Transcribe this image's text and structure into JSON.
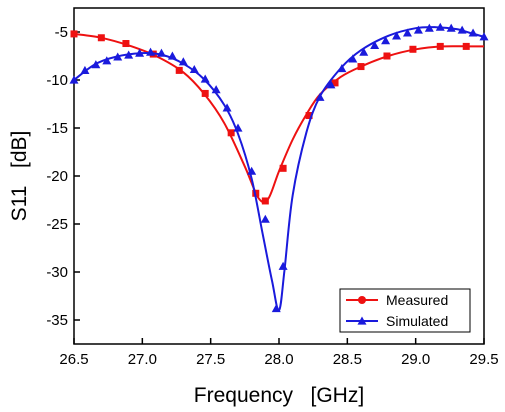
{
  "chart_data": {
    "type": "line",
    "xlabel": "Frequency   [GHz]",
    "ylabel": "S11   [dB]",
    "xlim": [
      26.5,
      29.5
    ],
    "ylim": [
      -37.5,
      -2.5
    ],
    "xticks": [
      "26.5",
      "27.0",
      "27.5",
      "28.0",
      "28.5",
      "29.0",
      "29.5"
    ],
    "yticks": [
      "-5",
      "-10",
      "-15",
      "-20",
      "-25",
      "-30",
      "-35"
    ],
    "grid": false,
    "legend_position": "bottom-right",
    "series": [
      {
        "name": "Measured",
        "color": "#ee1111",
        "marker": "square",
        "x": [
          26.5,
          26.7,
          26.9,
          27.1,
          27.3,
          27.45,
          27.6,
          27.75,
          27.85,
          27.92,
          28.0,
          28.1,
          28.2,
          28.3,
          28.45,
          28.6,
          28.8,
          29.0,
          29.2,
          29.4,
          29.5
        ],
        "y": [
          -5.2,
          -5.6,
          -6.4,
          -7.5,
          -9.2,
          -11.4,
          -14.5,
          -19.0,
          -22.3,
          -22.4,
          -19.5,
          -16.2,
          -13.6,
          -11.5,
          -9.7,
          -8.6,
          -7.5,
          -6.8,
          -6.5,
          -6.5,
          -6.5
        ],
        "marker_x": [
          26.5,
          26.7,
          26.88,
          27.08,
          27.27,
          27.46,
          27.65,
          27.83,
          27.9,
          28.03,
          28.22,
          28.41,
          28.6,
          28.79,
          28.98,
          29.18,
          29.37
        ],
        "marker_y": [
          -5.2,
          -5.6,
          -6.2,
          -7.3,
          -9.0,
          -11.4,
          -15.5,
          -21.8,
          -22.6,
          -19.2,
          -13.7,
          -10.3,
          -8.6,
          -7.5,
          -6.8,
          -6.5,
          -6.5
        ]
      },
      {
        "name": "Simulated",
        "color": "#1a1adc",
        "marker": "triangle",
        "x": [
          26.5,
          26.65,
          26.8,
          27.0,
          27.15,
          27.3,
          27.45,
          27.6,
          27.7,
          27.8,
          27.88,
          27.95,
          28.0,
          28.04,
          28.1,
          28.2,
          28.3,
          28.45,
          28.6,
          28.8,
          29.0,
          29.15,
          29.3,
          29.4,
          29.5
        ],
        "y": [
          -10.0,
          -8.4,
          -7.6,
          -7.2,
          -7.4,
          -8.3,
          -9.9,
          -12.6,
          -15.6,
          -20.3,
          -26.0,
          -31.0,
          -34.0,
          -29.8,
          -22.0,
          -15.5,
          -11.7,
          -8.8,
          -6.9,
          -5.4,
          -4.6,
          -4.5,
          -4.7,
          -5.1,
          -5.5
        ],
        "marker_x": [
          26.5,
          26.58,
          26.66,
          26.74,
          26.82,
          26.9,
          26.98,
          27.06,
          27.14,
          27.22,
          27.3,
          27.38,
          27.46,
          27.54,
          27.62,
          27.7,
          27.8,
          27.9,
          27.98,
          28.03,
          28.3,
          28.38,
          28.46,
          28.54,
          28.62,
          28.7,
          28.78,
          28.86,
          28.94,
          29.02,
          29.1,
          29.18,
          29.26,
          29.34,
          29.42,
          29.5
        ],
        "marker_y": [
          -10.0,
          -9.0,
          -8.4,
          -8.0,
          -7.6,
          -7.4,
          -7.2,
          -7.1,
          -7.2,
          -7.5,
          -8.1,
          -8.9,
          -9.9,
          -11.0,
          -12.9,
          -15.0,
          -19.5,
          -24.5,
          -33.8,
          -29.4,
          -11.8,
          -10.5,
          -8.8,
          -7.8,
          -7.1,
          -6.4,
          -5.9,
          -5.4,
          -5.1,
          -4.8,
          -4.6,
          -4.5,
          -4.6,
          -4.8,
          -5.1,
          -5.5
        ]
      }
    ]
  }
}
